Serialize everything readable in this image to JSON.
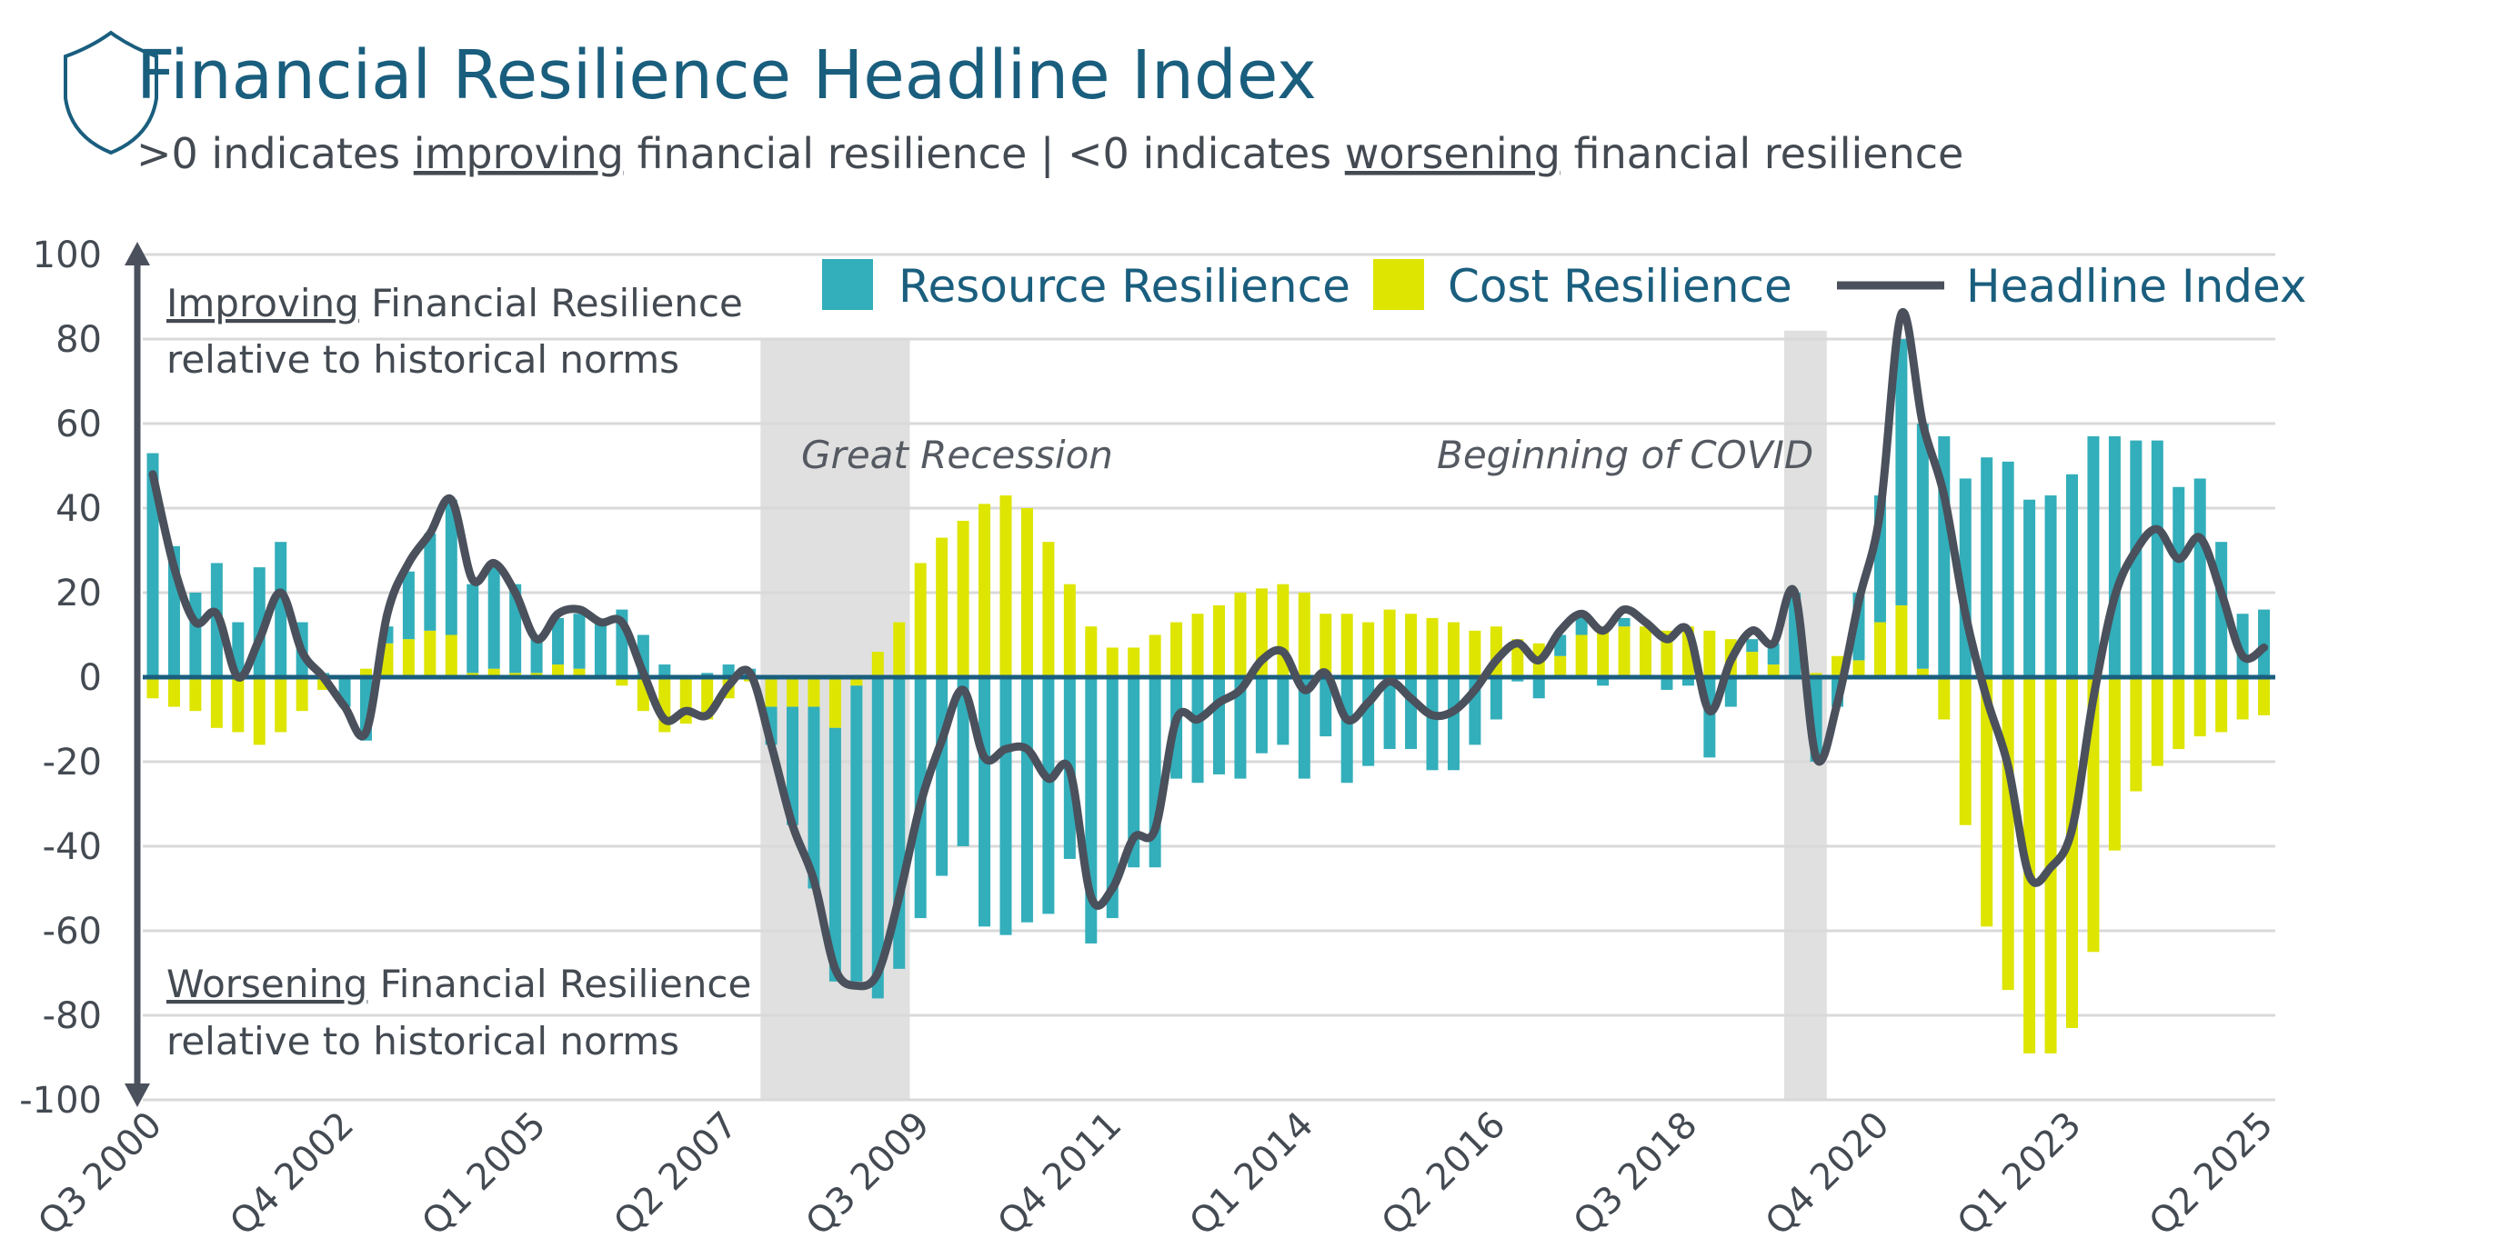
{
  "header": {
    "title": "Financial Resilience Headline Index",
    "subtitle_parts": [
      ">0 indicates ",
      "improving",
      " financial resilience | <0 indicates ",
      "worsening",
      " financial resilience"
    ],
    "icon": "shield-icon"
  },
  "annotations": {
    "improving_word": "Improving",
    "improving_rest": " Financial Resilience",
    "improving_line2": "relative to historical norms",
    "worsening_word": "Worsening",
    "worsening_rest": " Financial Resilience",
    "worsening_line2": "relative to historical norms"
  },
  "chart_data": {
    "type": "bar",
    "stacked": true,
    "ylim": [
      -100,
      100
    ],
    "yticks": [
      100,
      80,
      60,
      40,
      20,
      0,
      -20,
      -40,
      -60,
      -80,
      -100
    ],
    "grid": true,
    "legend_position": "top-right",
    "xtick_labels": [
      "Q3 2000",
      "Q4 2002",
      "Q1 2005",
      "Q2 2007",
      "Q3 2009",
      "Q4 2011",
      "Q1 2014",
      "Q2 2016",
      "Q3 2018",
      "Q4 2020",
      "Q1 2023",
      "Q2 2025"
    ],
    "x_start": "Q3 2000",
    "x_end": "Q2 2025",
    "colors": {
      "resource": "#33aebb",
      "cost": "#dde500",
      "headline": "#4a515c",
      "zero_line": "#1a5e7e",
      "shade": "#e0e0e0"
    },
    "shaded_periods": [
      {
        "label": "Great Recession",
        "from": "Q4 2007",
        "to": "Q2 2009"
      },
      {
        "label": "Beginning of COVID",
        "from": "Q4 2019",
        "to": "Q1 2020"
      }
    ],
    "series": [
      {
        "name": "Resource Resilience",
        "type": "bar",
        "values": [
          53,
          31,
          20,
          27,
          13,
          26,
          32,
          13,
          1,
          -7,
          -15,
          4,
          16,
          23,
          32,
          21,
          24,
          21,
          8,
          11,
          13,
          13,
          16,
          10,
          3,
          0,
          1,
          3,
          2,
          -9,
          -28,
          -43,
          -60,
          -70,
          -76,
          -69,
          -57,
          -47,
          -40,
          -59,
          -61,
          -58,
          -56,
          -43,
          -63,
          -57,
          -45,
          -45,
          -24,
          -25,
          -23,
          -24,
          -18,
          -16,
          -24,
          -14,
          -25,
          -21,
          -17,
          -17,
          -22,
          -22,
          -16,
          -10,
          -1,
          -5,
          5,
          5,
          -2,
          2,
          0,
          -3,
          -2,
          -19,
          -7,
          3,
          5,
          20,
          -20,
          -7,
          16,
          30,
          63,
          58,
          57,
          47,
          52,
          51,
          42,
          43,
          48,
          57,
          57,
          56,
          56,
          45,
          47,
          32,
          15,
          16
        ]
      },
      {
        "name": "Cost Resilience",
        "type": "bar",
        "values": [
          -5,
          -7,
          -8,
          -12,
          -13,
          -16,
          -13,
          -8,
          -3,
          0,
          2,
          8,
          9,
          11,
          10,
          1,
          2,
          1,
          1,
          3,
          2,
          0,
          -2,
          -8,
          -13,
          -11,
          -10,
          -5,
          -1,
          -7,
          -7,
          -7,
          -12,
          -2,
          6,
          13,
          27,
          33,
          37,
          41,
          43,
          40,
          32,
          22,
          12,
          7,
          7,
          10,
          13,
          15,
          17,
          20,
          21,
          22,
          20,
          15,
          15,
          13,
          16,
          15,
          14,
          13,
          11,
          12,
          9,
          8,
          5,
          10,
          12,
          12,
          12,
          11,
          12,
          11,
          9,
          6,
          3,
          0,
          1,
          5,
          4,
          13,
          17,
          2,
          -10,
          -35,
          -59,
          -74,
          -89,
          -89,
          -83,
          -65,
          -41,
          -27,
          -21,
          -17,
          -14,
          -13,
          -10,
          -9
        ]
      },
      {
        "name": "Headline Index",
        "type": "line",
        "values": [
          48,
          26,
          13,
          15,
          0,
          9,
          20,
          6,
          0,
          -7,
          -13,
          15,
          27,
          34,
          42,
          23,
          27,
          20,
          9,
          15,
          16,
          13,
          13,
          1,
          -10,
          -8,
          -9,
          -2,
          1,
          -16,
          -35,
          -48,
          -69,
          -73,
          -70,
          -52,
          -30,
          -15,
          -3,
          -19,
          -17,
          -17,
          -24,
          -22,
          -52,
          -50,
          -38,
          -36,
          -10,
          -10,
          -6,
          -3,
          4,
          6,
          -3,
          1,
          -10,
          -6,
          -1,
          -5,
          -9,
          -8,
          -3,
          4,
          8,
          4,
          11,
          15,
          11,
          16,
          13,
          9,
          11,
          -8,
          4,
          11,
          8,
          20,
          -19,
          -6,
          18,
          39,
          86,
          60,
          43,
          15,
          -5,
          -21,
          -47,
          -45,
          -36,
          -5,
          19,
          30,
          35,
          28,
          33,
          20,
          5,
          7
        ]
      }
    ]
  }
}
